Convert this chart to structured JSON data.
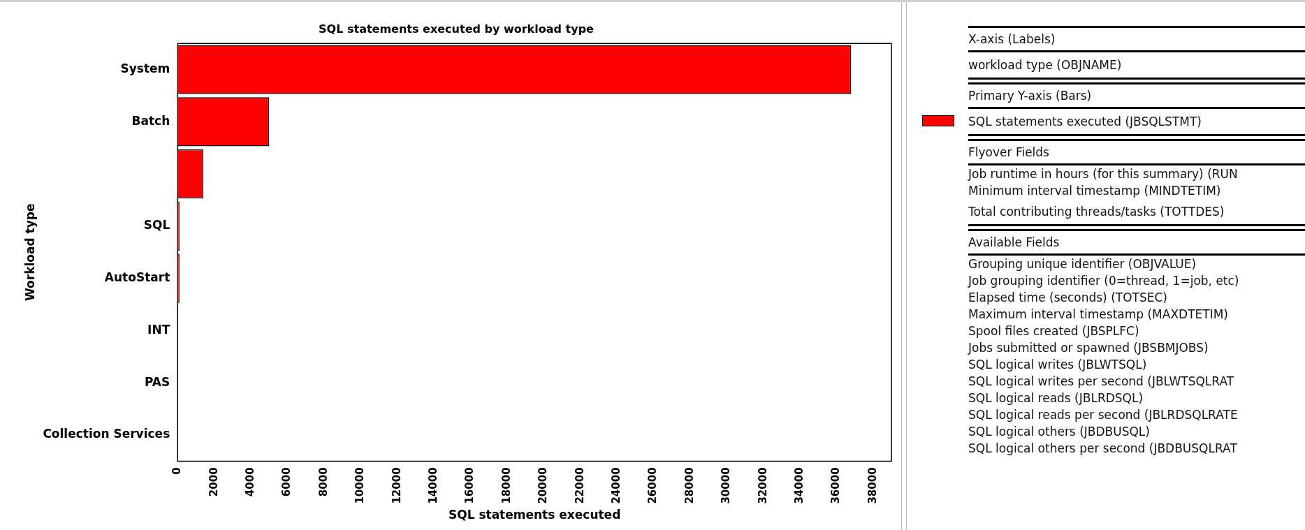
{
  "chart_data": {
    "type": "bar",
    "orientation": "horizontal",
    "title": "SQL statements executed by workload type",
    "xlabel": "SQL statements executed",
    "ylabel": "Workload type",
    "categories": [
      "System",
      "Batch",
      null,
      "SQL",
      "AutoStart",
      "INT",
      "PAS",
      "Collection Services"
    ],
    "series": [
      {
        "name": "SQL statements executed (JBSQLSTMT)",
        "color": "#ff0000",
        "values": [
          36800,
          5000,
          1400,
          100,
          100,
          0,
          0,
          0
        ]
      }
    ],
    "xlim": [
      0,
      39000
    ],
    "xticks": [
      0,
      2000,
      4000,
      6000,
      8000,
      10000,
      12000,
      14000,
      16000,
      18000,
      20000,
      22000,
      24000,
      26000,
      28000,
      30000,
      32000,
      34000,
      36000,
      38000
    ],
    "grid": false,
    "legend": "right",
    "annotations": [
      "X-axis (Labels)",
      "workload type (OBJNAME)",
      "Primary Y-axis (Bars)",
      "Flyover Fields",
      "Job runtime in hours (for this summary) (RUN",
      "Minimum interval timestamp (MINDTETIM)",
      "Total contributing threads/tasks (TOTTDES)",
      "Available Fields",
      "Grouping unique identifier (OBJVALUE)",
      "Job grouping identifier (0=thread, 1=job, etc)",
      "Elapsed time (seconds) (TOTSEC)",
      "Maximum interval timestamp (MAXDTETIM)",
      "Spool files created (JBSPLFC)",
      "Jobs submitted or spawned (JBSBMJOBS)",
      "SQL logical writes (JBLWTSQL)",
      "SQL logical writes per second (JBLWTSQLRAT",
      "SQL logical reads (JBLRDSQL)",
      "SQL logical reads per second (JBLRDSQLRATE",
      "SQL logical others (JBDBUSQL)",
      "SQL logical others per second (JBDBUSQLRAT"
    ]
  }
}
